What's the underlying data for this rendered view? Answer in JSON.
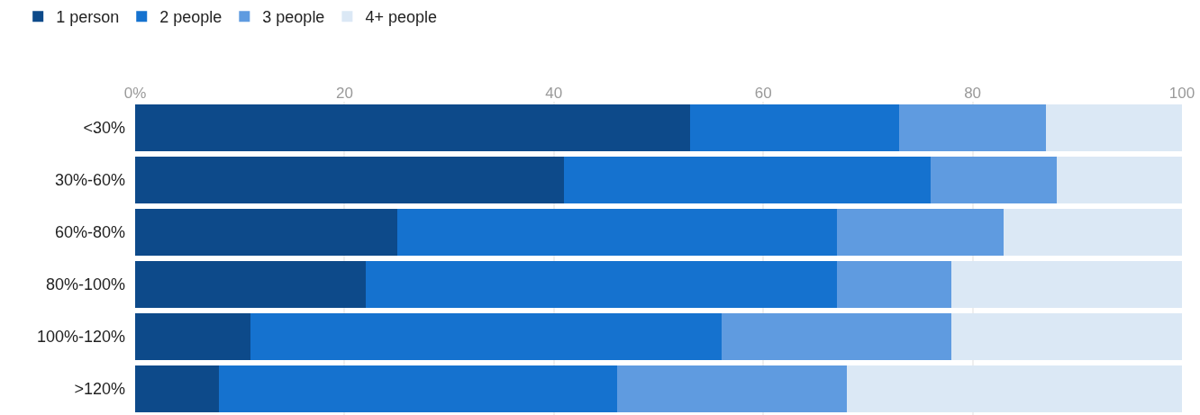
{
  "chart_data": {
    "type": "bar",
    "orientation": "horizontal",
    "stacked": true,
    "categories": [
      "<30%",
      "30%-60%",
      "60%-80%",
      "80%-100%",
      "100%-120%",
      ">120%"
    ],
    "series": [
      {
        "name": "1 person",
        "color": "#0d4a8a",
        "values": [
          53,
          41,
          25,
          22,
          11,
          8
        ]
      },
      {
        "name": "2 people",
        "color": "#1572cf",
        "values": [
          20,
          35,
          42,
          45,
          45,
          38
        ]
      },
      {
        "name": "3 people",
        "color": "#5f9be0",
        "values": [
          14,
          12,
          16,
          11,
          22,
          22
        ]
      },
      {
        "name": "4+ people",
        "color": "#dbe8f5",
        "values": [
          13,
          12,
          17,
          22,
          22,
          32
        ]
      }
    ],
    "xlim": [
      0,
      100
    ],
    "xticks": [
      {
        "value": 0,
        "label": "0%"
      },
      20,
      40,
      60,
      80,
      100
    ],
    "grid": "x",
    "legend": "top left"
  }
}
